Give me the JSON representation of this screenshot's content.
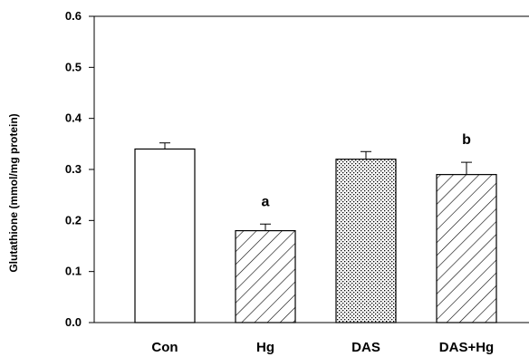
{
  "chart_data": {
    "type": "bar",
    "title": "",
    "xlabel": "",
    "ylabel": "Glutathione (mmol/mg protein)",
    "ylim": [
      0,
      0.6
    ],
    "yticks": [
      "0.0",
      "0.1",
      "0.2",
      "0.3",
      "0.4",
      "0.5",
      "0.6"
    ],
    "grid": false,
    "legend": "none",
    "categories": [
      "Con",
      "Hg",
      "DAS",
      "DAS+Hg"
    ],
    "values": [
      0.34,
      0.18,
      0.32,
      0.29
    ],
    "errors": [
      0.012,
      0.013,
      0.015,
      0.024
    ],
    "annotations": [
      "",
      "a",
      "",
      "b"
    ],
    "fills": [
      "white",
      "diagonal-hatch",
      "dotted",
      "diagonal-hatch"
    ]
  }
}
